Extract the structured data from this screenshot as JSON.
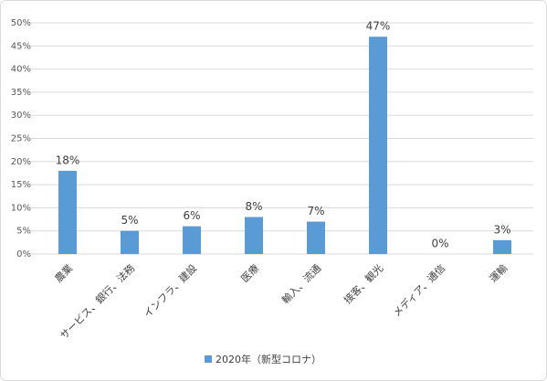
{
  "chart_data": {
    "type": "bar",
    "categories": [
      "農業",
      "サービス、銀行、法務",
      "インフラ、建設",
      "医療",
      "輸入、流通",
      "接客、観光",
      "メディア、通信",
      "運輸"
    ],
    "series": [
      {
        "name": "2020年（新型コロナ）",
        "color": "#5b9bd5",
        "values": [
          18,
          5,
          6,
          8,
          7,
          47,
          0,
          3
        ],
        "value_labels": [
          "18%",
          "5%",
          "6%",
          "8%",
          "7%",
          "47%",
          "0%",
          "3%"
        ]
      }
    ],
    "ylim": [
      0,
      50
    ],
    "yticks": [
      {
        "value": 0,
        "label": "0%"
      },
      {
        "value": 5,
        "label": "5%"
      },
      {
        "value": 10,
        "label": "10%"
      },
      {
        "value": 15,
        "label": "15%"
      },
      {
        "value": 20,
        "label": "20%"
      },
      {
        "value": 25,
        "label": "25%"
      },
      {
        "value": 30,
        "label": "30%"
      },
      {
        "value": 35,
        "label": "35%"
      },
      {
        "value": 40,
        "label": "40%"
      },
      {
        "value": 45,
        "label": "45%"
      },
      {
        "value": 50,
        "label": "50%"
      }
    ],
    "grid": true,
    "legend": "bottom"
  }
}
